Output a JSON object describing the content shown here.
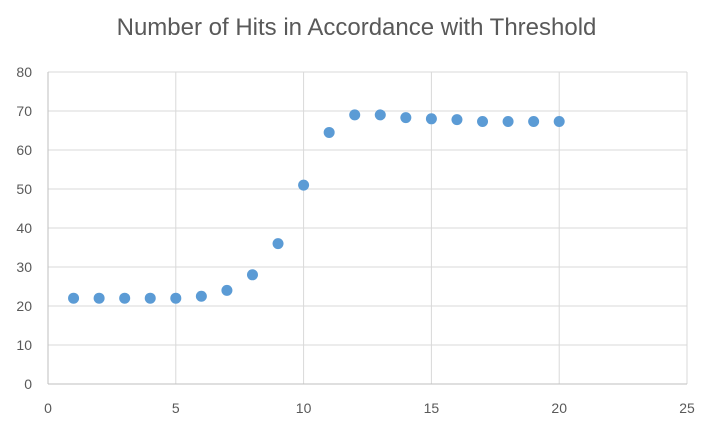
{
  "chart_data": {
    "type": "scatter",
    "title": "Number of Hits in Accordance with Threshold",
    "xlabel": "",
    "ylabel": "",
    "xlim": [
      0,
      25
    ],
    "ylim": [
      0,
      80
    ],
    "x_ticks": [
      0,
      5,
      10,
      15,
      20,
      25
    ],
    "y_ticks": [
      0,
      10,
      20,
      30,
      40,
      50,
      60,
      70,
      80
    ],
    "grid": true,
    "legend": "none",
    "marker_color": "#5B9BD5",
    "series": [
      {
        "points": [
          {
            "x": 1,
            "y": 22
          },
          {
            "x": 2,
            "y": 22
          },
          {
            "x": 3,
            "y": 22
          },
          {
            "x": 4,
            "y": 22
          },
          {
            "x": 5,
            "y": 22
          },
          {
            "x": 6,
            "y": 22.5
          },
          {
            "x": 7,
            "y": 24
          },
          {
            "x": 8,
            "y": 28
          },
          {
            "x": 9,
            "y": 36
          },
          {
            "x": 10,
            "y": 51
          },
          {
            "x": 11,
            "y": 64.5
          },
          {
            "x": 12,
            "y": 69
          },
          {
            "x": 13,
            "y": 69
          },
          {
            "x": 14,
            "y": 68.3
          },
          {
            "x": 15,
            "y": 68
          },
          {
            "x": 16,
            "y": 67.8
          },
          {
            "x": 17,
            "y": 67.3
          },
          {
            "x": 18,
            "y": 67.3
          },
          {
            "x": 19,
            "y": 67.3
          },
          {
            "x": 20,
            "y": 67.3
          }
        ]
      }
    ]
  }
}
